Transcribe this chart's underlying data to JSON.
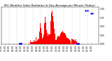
{
  "title": "Mil. Weather Solar Radiation & Day Average per Minute (Today)",
  "background_color": "#ffffff",
  "plot_bg_color": "#ffffff",
  "bar_color": "#ff0000",
  "avg_color": "#0000ff",
  "grid_color": "#cccccc",
  "num_points": 288,
  "ylim": [
    0,
    1.05
  ],
  "title_fontsize": 3.0,
  "tick_fontsize": 2.2
}
